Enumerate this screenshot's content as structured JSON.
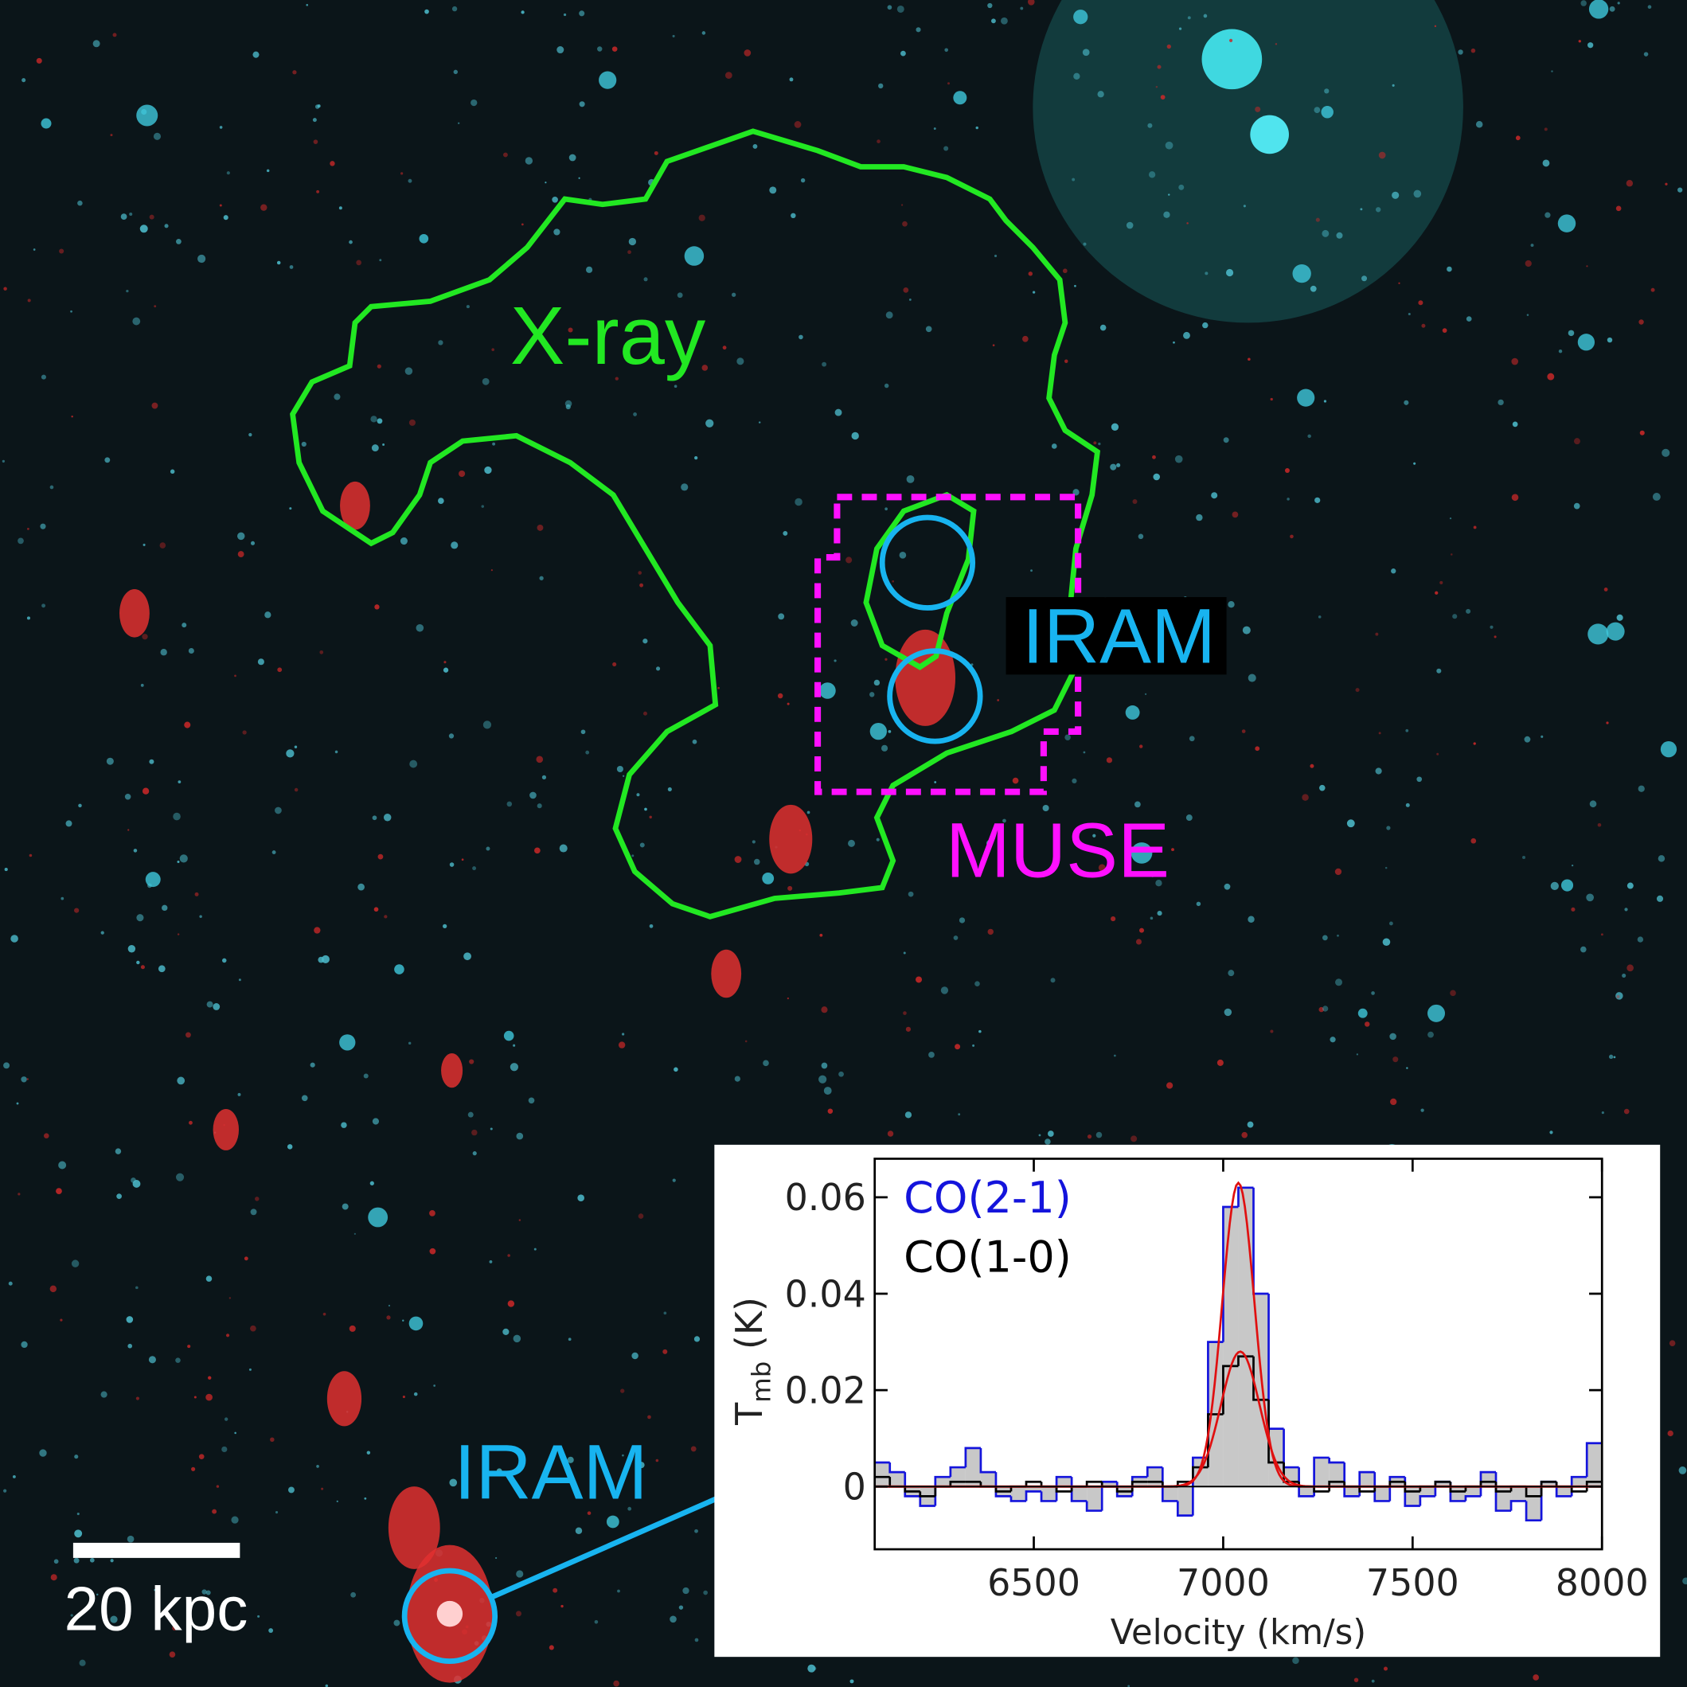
{
  "labels": {
    "xray": "X-ray",
    "iram_top": "IRAM",
    "muse": "MUSE",
    "iram_bottom": "IRAM",
    "scale_bar": "20 kpc"
  },
  "chart_data": {
    "type": "step",
    "x_label": "Velocity (km/s)",
    "y_label": {
      "main": "T",
      "sub": "mb",
      "rest": " (K)"
    },
    "x": [
      6100,
      6140,
      6180,
      6220,
      6260,
      6300,
      6340,
      6380,
      6420,
      6460,
      6500,
      6540,
      6580,
      6620,
      6660,
      6700,
      6740,
      6780,
      6820,
      6860,
      6900,
      6940,
      6980,
      7020,
      7060,
      7100,
      7140,
      7180,
      7220,
      7260,
      7300,
      7340,
      7380,
      7420,
      7460,
      7500,
      7540,
      7580,
      7620,
      7660,
      7700,
      7740,
      7780,
      7820,
      7860,
      7900,
      7940,
      7980
    ],
    "series": [
      {
        "name": "CO(2-1)",
        "color": "#1414dc",
        "fill_color": "#c8c8c8",
        "values": [
          0.005,
          0.003,
          -0.002,
          -0.004,
          0.002,
          0.004,
          0.008,
          0.003,
          -0.002,
          -0.003,
          -0.001,
          -0.003,
          0.002,
          -0.003,
          -0.005,
          0.001,
          -0.002,
          0.002,
          0.004,
          -0.003,
          -0.006,
          0.006,
          0.03,
          0.058,
          0.062,
          0.04,
          0.012,
          0.004,
          -0.002,
          0.006,
          0.005,
          -0.002,
          0.003,
          -0.003,
          0.002,
          -0.004,
          -0.002,
          0.001,
          -0.003,
          -0.002,
          0.003,
          -0.005,
          -0.003,
          -0.007,
          0.001,
          -0.002,
          0.002,
          0.009
        ]
      },
      {
        "name": "CO(1-0)",
        "color": "#000000",
        "values": [
          0.002,
          0,
          -0.001,
          -0.002,
          0,
          0.001,
          0.001,
          0,
          -0.001,
          0,
          0.001,
          0,
          -0.001,
          0,
          0.001,
          0,
          -0.001,
          0.001,
          0.001,
          0,
          0.001,
          0.004,
          0.015,
          0.025,
          0.027,
          0.018,
          0.005,
          0.001,
          0,
          -0.001,
          0.001,
          0,
          -0.001,
          0,
          0.001,
          -0.001,
          0,
          0.001,
          -0.001,
          0,
          0.001,
          -0.001,
          0,
          -0.002,
          0.001,
          0,
          -0.001,
          0.001
        ]
      }
    ],
    "fits": [
      {
        "color": "#e01010",
        "amplitude": 0.063,
        "center": 7040,
        "fwhm": 100
      },
      {
        "color": "#e01010",
        "amplitude": 0.028,
        "center": 7045,
        "fwhm": 120
      }
    ],
    "xlim": [
      6080,
      8000
    ],
    "ylim": [
      -0.013,
      0.068
    ],
    "xticks": [
      6500,
      7000,
      7500,
      8000
    ],
    "yticks": [
      0,
      0.02,
      0.04,
      0.06
    ]
  }
}
